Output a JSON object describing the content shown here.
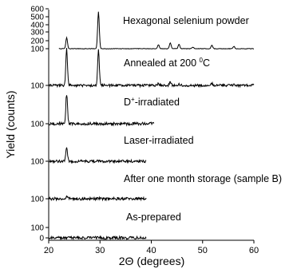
{
  "chart_data": {
    "type": "line",
    "xlabel": "2Θ (degrees)",
    "ylabel": "Yield (counts)",
    "xlim": [
      20,
      60
    ],
    "x_ticks": [
      20,
      30,
      40,
      50,
      60
    ],
    "y_tick_labels": [
      "0",
      "100",
      "100",
      "100",
      "100",
      "100",
      "100",
      "200",
      "300",
      "400",
      "500",
      "600"
    ],
    "grid": false,
    "legend": "none",
    "series": [
      {
        "name": "Hexagonal selenium powder",
        "x_range": [
          22,
          60
        ],
        "baseline": 100,
        "peaks": [
          {
            "x": 23.5,
            "y": 240
          },
          {
            "x": 29.7,
            "y": 560
          },
          {
            "x": 41.4,
            "y": 150
          },
          {
            "x": 43.7,
            "y": 175
          },
          {
            "x": 45.4,
            "y": 155
          },
          {
            "x": 48.1,
            "y": 120
          },
          {
            "x": 51.8,
            "y": 145
          },
          {
            "x": 56.1,
            "y": 130
          }
        ]
      },
      {
        "name_prefix": "Annealed at 200 ",
        "name_sup": "0",
        "name_suffix": "C",
        "x_range": [
          20,
          60
        ],
        "baseline": 100,
        "peaks": [
          {
            "x": 23.5,
            "y": 330
          },
          {
            "x": 29.7,
            "y": 320
          },
          {
            "x": 41.4,
            "y": 112
          },
          {
            "x": 43.7,
            "y": 120
          },
          {
            "x": 45.4,
            "y": 110
          },
          {
            "x": 51.8,
            "y": 112
          },
          {
            "x": 56.1,
            "y": 106
          }
        ]
      },
      {
        "name_prefix": "D",
        "name_sup": "+",
        "name_suffix": "-irradiated",
        "x_range": [
          20,
          40.5
        ],
        "baseline": 100,
        "peaks": [
          {
            "x": 23.5,
            "y": 270
          }
        ]
      },
      {
        "name": "Laser-irradiated",
        "x_range": [
          20,
          39
        ],
        "baseline": 100,
        "peaks": [
          {
            "x": 23.5,
            "y": 175
          }
        ]
      },
      {
        "name": "After one month storage (sample B)",
        "x_range": [
          20,
          39
        ],
        "baseline": 100,
        "peaks": [
          {
            "x": 23.5,
            "y": 115
          }
        ]
      },
      {
        "name": "As-prepared",
        "x_range": [
          20,
          39
        ],
        "baseline": 0,
        "peaks": []
      }
    ]
  }
}
